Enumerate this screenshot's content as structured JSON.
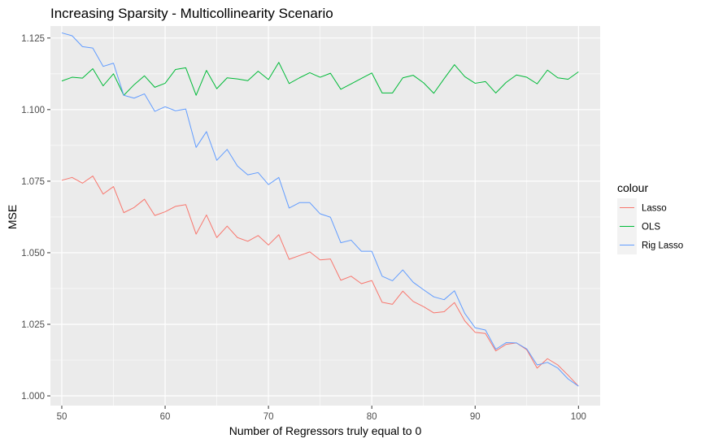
{
  "chart_data": {
    "type": "line",
    "title": "Increasing Sparsity - Multicollinearity Scenario",
    "xlabel": "Number of Regressors truly equal to 0",
    "ylabel": "MSE",
    "xlim": [
      48.9,
      102.1
    ],
    "ylim": [
      0.9966,
      1.1292
    ],
    "x_ticks": [
      50,
      60,
      70,
      80,
      90,
      100
    ],
    "x_tick_labels": [
      "50",
      "60",
      "70",
      "80",
      "90",
      "100"
    ],
    "y_ticks": [
      1.0,
      1.025,
      1.05,
      1.075,
      1.1,
      1.125
    ],
    "y_tick_labels": [
      "1.000",
      "1.025",
      "1.050",
      "1.075",
      "1.100",
      "1.125"
    ],
    "grid": true,
    "legend": {
      "title": "colour",
      "position": "right"
    },
    "x": [
      50,
      51,
      52,
      53,
      54,
      55,
      56,
      57,
      58,
      59,
      60,
      61,
      62,
      63,
      64,
      65,
      66,
      67,
      68,
      69,
      70,
      71,
      72,
      73,
      74,
      75,
      76,
      77,
      78,
      79,
      80,
      81,
      82,
      83,
      84,
      85,
      86,
      87,
      88,
      89,
      90,
      91,
      92,
      93,
      94,
      95,
      96,
      97,
      98,
      99,
      100
    ],
    "series": [
      {
        "name": "Lasso",
        "color": "#F8766D",
        "values": [
          1.0753,
          1.0763,
          1.0743,
          1.0768,
          1.0705,
          1.0731,
          1.064,
          1.0658,
          1.0687,
          1.063,
          1.0643,
          1.0662,
          1.0668,
          1.0565,
          1.0632,
          1.0553,
          1.0593,
          1.0553,
          1.054,
          1.056,
          1.0527,
          1.0563,
          1.0477,
          1.049,
          1.0503,
          1.0475,
          1.0478,
          1.0404,
          1.0418,
          1.0392,
          1.0403,
          1.0327,
          1.032,
          1.0366,
          1.033,
          1.0312,
          1.029,
          1.0294,
          1.0326,
          1.0262,
          1.0222,
          1.0218,
          1.0157,
          1.018,
          1.0185,
          1.0161,
          1.0097,
          1.013,
          1.0108,
          1.0072,
          1.0034
        ]
      },
      {
        "name": "OLS",
        "color": "#00BA38",
        "values": [
          1.11,
          1.1113,
          1.111,
          1.1143,
          1.1083,
          1.1125,
          1.105,
          1.1087,
          1.1118,
          1.1078,
          1.1092,
          1.114,
          1.1146,
          1.105,
          1.1137,
          1.1073,
          1.1111,
          1.1107,
          1.1101,
          1.1134,
          1.1105,
          1.1165,
          1.1091,
          1.1111,
          1.1129,
          1.1113,
          1.1127,
          1.1071,
          1.109,
          1.1109,
          1.1128,
          1.1058,
          1.1058,
          1.1111,
          1.112,
          1.1094,
          1.1057,
          1.1108,
          1.1157,
          1.1115,
          1.1092,
          1.1098,
          1.1058,
          1.1095,
          1.1121,
          1.1113,
          1.109,
          1.1138,
          1.1111,
          1.1106,
          1.1132
        ]
      },
      {
        "name": "Rig Lasso",
        "color": "#619CFF",
        "values": [
          1.1268,
          1.1258,
          1.122,
          1.1215,
          1.1151,
          1.1162,
          1.105,
          1.104,
          1.1055,
          1.0994,
          1.101,
          1.0996,
          1.1002,
          1.0868,
          1.0923,
          1.0823,
          1.0861,
          1.0803,
          1.0772,
          1.078,
          1.0738,
          1.0763,
          1.0656,
          1.0675,
          1.0675,
          1.0636,
          1.0624,
          1.0535,
          1.0544,
          1.0505,
          1.0505,
          1.0418,
          1.0402,
          1.044,
          1.0397,
          1.0371,
          1.0346,
          1.0336,
          1.0367,
          1.0288,
          1.0238,
          1.023,
          1.0163,
          1.0186,
          1.0185,
          1.0164,
          1.0108,
          1.0117,
          1.0097,
          1.0059,
          1.0034
        ]
      }
    ]
  }
}
